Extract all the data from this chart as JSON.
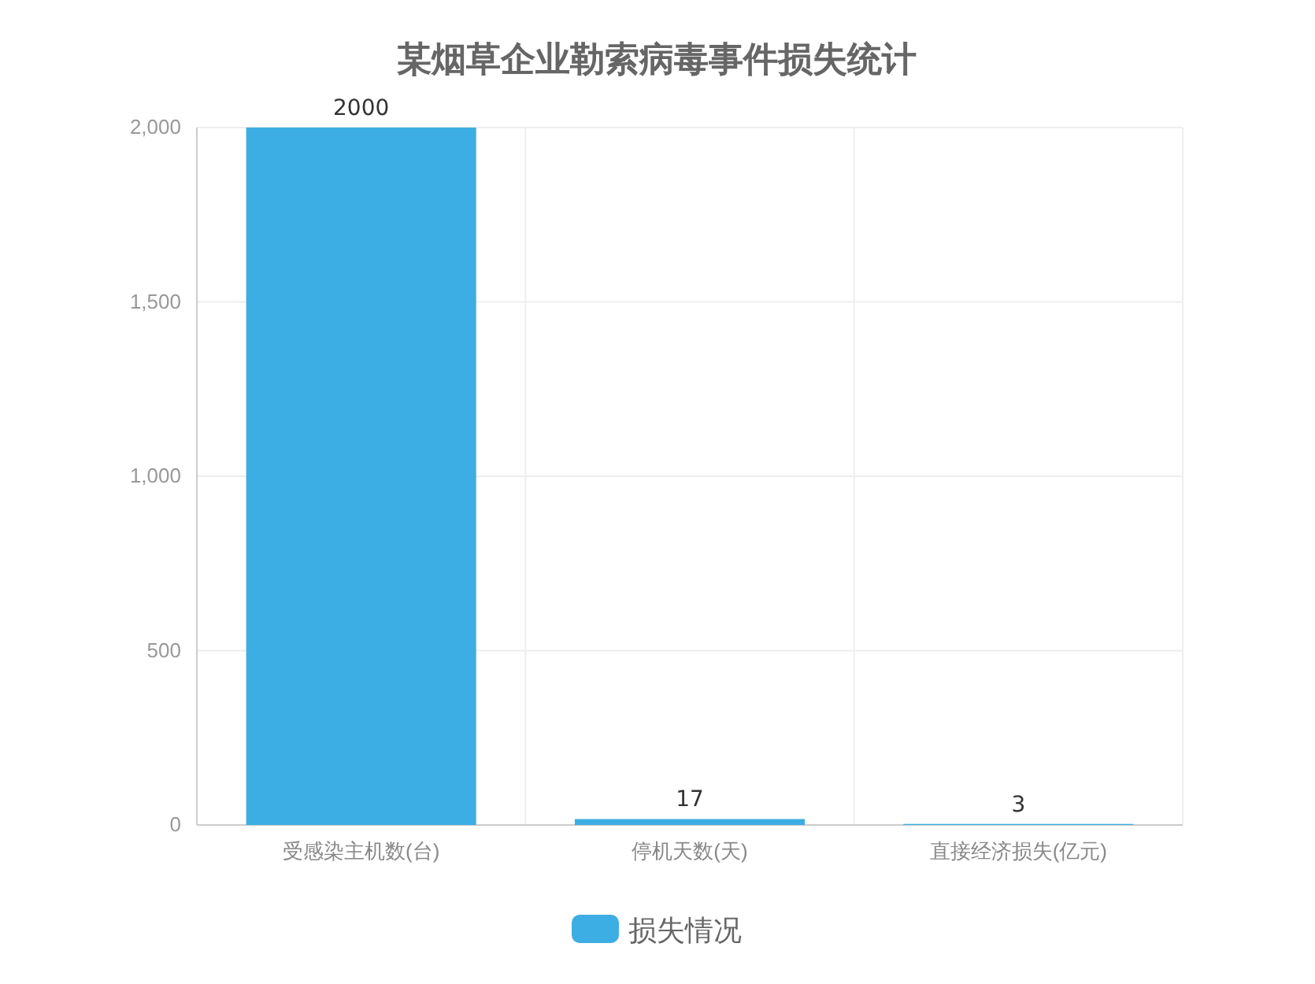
{
  "chart_data": {
    "type": "bar",
    "title": "某烟草企业勒索病毒事件损失统计",
    "categories": [
      "受感染主机数(台)",
      "停机天数(天)",
      "直接经济损失(亿元)"
    ],
    "series": [
      {
        "name": "损失情况",
        "color": "#3daee3",
        "values": [
          2000,
          17,
          3
        ]
      }
    ],
    "ylim": [
      0,
      2000
    ],
    "yticks": [
      0,
      500,
      {
        "value": 1000,
        "label": "1,000"
      },
      {
        "value": 1500,
        "label": "1,500"
      },
      {
        "value": 2000,
        "label": "2,000"
      }
    ],
    "grid": true,
    "legend": "bottom",
    "data_labels": true
  }
}
